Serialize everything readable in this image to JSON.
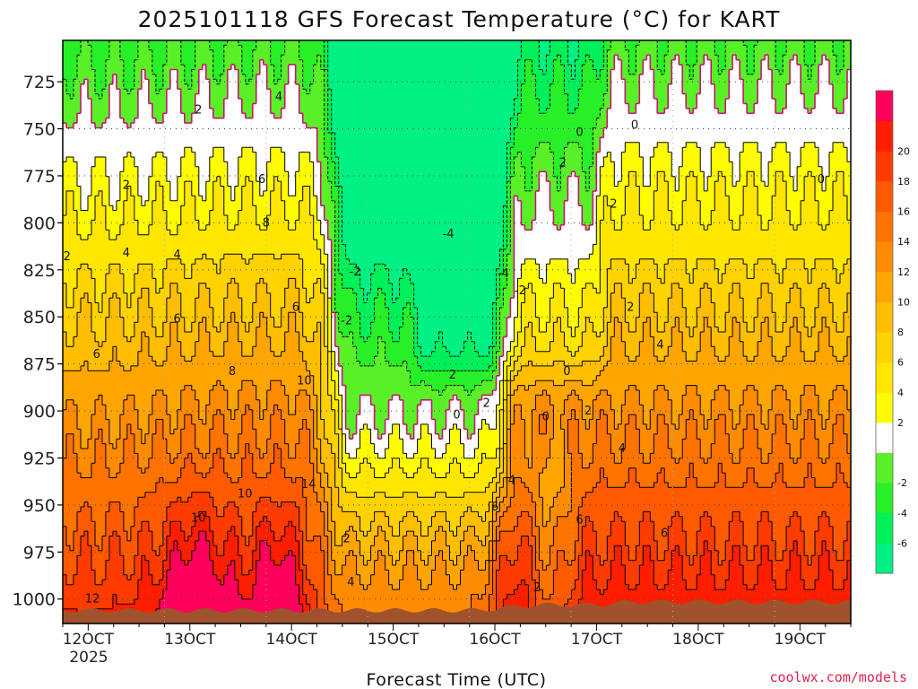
{
  "chart_data": {
    "type": "contour-timeheight",
    "title": "2025101118 GFS Forecast Temperature (°C) for KART",
    "xlabel": "Forecast Time (UTC)",
    "ylabel": "",
    "credit": "coolwx.com/models",
    "x_ticks": [
      "12OCT",
      "13OCT",
      "14OCT",
      "15OCT",
      "16OCT",
      "17OCT",
      "18OCT",
      "19OCT"
    ],
    "x_year": "2025",
    "x_range_hours": [
      0,
      186
    ],
    "y_ticks": [
      725,
      750,
      775,
      800,
      825,
      850,
      875,
      900,
      925,
      950,
      975,
      1000
    ],
    "ylim_hPa": [
      1013,
      703
    ],
    "colorbar": {
      "labels": [
        "20",
        "18",
        "16",
        "14",
        "12",
        "10",
        "8",
        "6",
        "4",
        "2",
        "-2",
        "-4",
        "-6"
      ],
      "levels": [
        -8,
        -6,
        -4,
        -2,
        0,
        2,
        4,
        6,
        8,
        10,
        12,
        14,
        16,
        18,
        20,
        22
      ],
      "colors": [
        "#00f083",
        "#00f05a",
        "#28f028",
        "#5af028",
        "#ffffff",
        "#fffc00",
        "#ffe600",
        "#ffd200",
        "#ffbe00",
        "#ffa500",
        "#ff8c00",
        "#ff7300",
        "#ff5a00",
        "#ff3c00",
        "#ff1e00",
        "#ff005a"
      ]
    },
    "contour_labels": [
      {
        "text": "2",
        "hour": 1,
        "p": 818
      },
      {
        "text": "2",
        "hour": 15,
        "p": 780
      },
      {
        "text": "2",
        "hour": 32,
        "p": 740
      },
      {
        "text": "4",
        "hour": 15,
        "p": 816
      },
      {
        "text": "4",
        "hour": 27,
        "p": 817
      },
      {
        "text": "4",
        "hour": 51,
        "p": 733
      },
      {
        "text": "6",
        "hour": 8,
        "p": 870
      },
      {
        "text": "6",
        "hour": 27,
        "p": 851
      },
      {
        "text": "6",
        "hour": 47,
        "p": 777
      },
      {
        "text": "6",
        "hour": 55,
        "p": 845
      },
      {
        "text": "8",
        "hour": 48,
        "p": 800
      },
      {
        "text": "8",
        "hour": 40,
        "p": 879
      },
      {
        "text": "10",
        "hour": 57,
        "p": 884
      },
      {
        "text": "10",
        "hour": 43,
        "p": 944
      },
      {
        "text": "10",
        "hour": 32,
        "p": 957
      },
      {
        "text": "14",
        "hour": 58,
        "p": 939
      },
      {
        "text": "12",
        "hour": 7,
        "p": 1000
      },
      {
        "text": "2",
        "hour": 67,
        "p": 968
      },
      {
        "text": "4",
        "hour": 68,
        "p": 991
      },
      {
        "text": "-2",
        "hour": 67,
        "p": 852
      },
      {
        "text": "-2",
        "hour": 69,
        "p": 826
      },
      {
        "text": "-4",
        "hour": 91,
        "p": 806
      },
      {
        "text": "-4",
        "hour": 104,
        "p": 827
      },
      {
        "text": "-2",
        "hour": 108,
        "p": 836
      },
      {
        "text": "2",
        "hour": 92,
        "p": 881
      },
      {
        "text": "0",
        "hour": 93,
        "p": 902
      },
      {
        "text": "2",
        "hour": 100,
        "p": 896
      },
      {
        "text": "4",
        "hour": 106,
        "p": 937
      },
      {
        "text": "6",
        "hour": 102,
        "p": 951
      },
      {
        "text": "2",
        "hour": 112,
        "p": 994
      },
      {
        "text": "0",
        "hour": 114,
        "p": 903
      },
      {
        "text": "0",
        "hour": 119,
        "p": 879
      },
      {
        "text": "2",
        "hour": 118,
        "p": 768
      },
      {
        "text": "0",
        "hour": 122,
        "p": 752
      },
      {
        "text": "0",
        "hour": 135,
        "p": 748
      },
      {
        "text": "0",
        "hour": 179,
        "p": 777
      },
      {
        "text": "2",
        "hour": 130,
        "p": 790
      },
      {
        "text": "2",
        "hour": 134,
        "p": 845
      },
      {
        "text": "2",
        "hour": 124,
        "p": 900
      },
      {
        "text": "4",
        "hour": 141,
        "p": 865
      },
      {
        "text": "4",
        "hour": 132,
        "p": 920
      },
      {
        "text": "6",
        "hour": 122,
        "p": 958
      },
      {
        "text": "6",
        "hour": 142,
        "p": 965
      }
    ]
  }
}
